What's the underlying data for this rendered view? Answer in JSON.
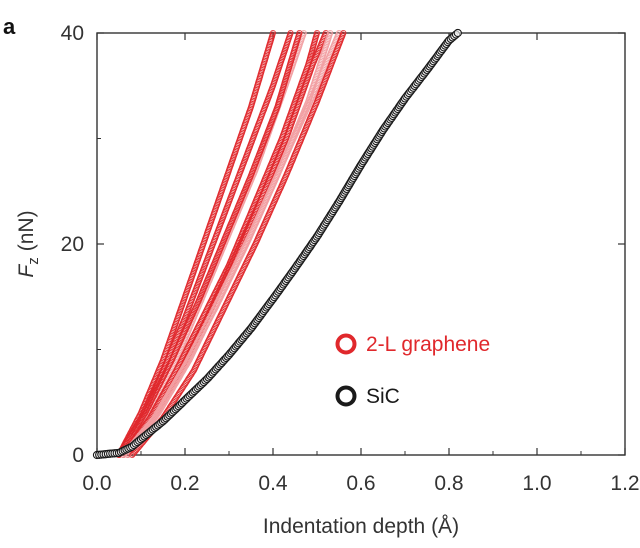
{
  "panel_label": "a",
  "colors": {
    "graphene": "#e0282c",
    "graphene_light": "#f2a0a3",
    "sic": "#1a1a1a",
    "axis": "#333333"
  },
  "chart_data": {
    "type": "scatter",
    "xlabel": "Indentation depth (Å)",
    "ylabel": {
      "symbol": "F",
      "subscript": "z",
      "unit": "(nN)"
    },
    "xlim": [
      0.0,
      1.2
    ],
    "ylim": [
      0,
      40
    ],
    "xticks": [
      "0.0",
      "0.2",
      "0.4",
      "0.6",
      "0.8",
      "1.0",
      "1.2"
    ],
    "yticks": [
      "0",
      "20",
      "40"
    ],
    "legend": {
      "placement": "lower-right",
      "entries": [
        {
          "label": "2-L graphene",
          "color": "#e0282c"
        },
        {
          "label": "SiC",
          "color": "#1a1a1a"
        }
      ]
    },
    "series": [
      {
        "name": "2-L graphene",
        "marker": "circle",
        "curves": [
          {
            "x": [
              0.05,
              0.1,
              0.15,
              0.2,
              0.25,
              0.3,
              0.35,
              0.4
            ],
            "y": [
              0,
              4,
              9,
              15,
              21,
              27,
              33,
              40
            ]
          },
          {
            "x": [
              0.05,
              0.1,
              0.15,
              0.2,
              0.25,
              0.3,
              0.35,
              0.4,
              0.44
            ],
            "y": [
              0,
              3.5,
              8,
              13,
              18.5,
              24,
              29.5,
              35,
              40
            ]
          },
          {
            "x": [
              0.06,
              0.12,
              0.18,
              0.24,
              0.3,
              0.36,
              0.42,
              0.47
            ],
            "y": [
              0,
              4,
              9,
              15,
              21,
              27,
              34,
              40
            ]
          },
          {
            "x": [
              0.06,
              0.12,
              0.18,
              0.24,
              0.3,
              0.36,
              0.42,
              0.48,
              0.5
            ],
            "y": [
              0,
              3.5,
              8,
              13,
              18,
              24,
              30,
              37,
              40
            ]
          },
          {
            "x": [
              0.07,
              0.13,
              0.19,
              0.25,
              0.31,
              0.37,
              0.43,
              0.49,
              0.52
            ],
            "y": [
              0,
              3.5,
              8,
              13,
              18.5,
              24,
              30,
              37,
              40
            ]
          },
          {
            "x": [
              0.07,
              0.14,
              0.21,
              0.28,
              0.35,
              0.42,
              0.49,
              0.55
            ],
            "y": [
              0,
              4,
              9,
              15,
              21,
              27.5,
              34,
              40
            ]
          },
          {
            "x": [
              0.08,
              0.15,
              0.22,
              0.29,
              0.36,
              0.43,
              0.5,
              0.56
            ],
            "y": [
              0,
              3.5,
              8,
              14,
              20,
              26.5,
              33.5,
              40
            ]
          },
          {
            "x": [
              0.05,
              0.11,
              0.17,
              0.23,
              0.29,
              0.35,
              0.41,
              0.46
            ],
            "y": [
              0,
              4,
              9,
              14.5,
              20.5,
              26.5,
              33,
              40
            ]
          },
          {
            "x": [
              0.06,
              0.13,
              0.2,
              0.27,
              0.34,
              0.41,
              0.48,
              0.53
            ],
            "y": [
              0,
              3.5,
              8.5,
              14,
              20,
              26.5,
              33.5,
              40
            ]
          }
        ]
      },
      {
        "name": "SiC",
        "marker": "circle",
        "x": [
          0.0,
          0.05,
          0.08,
          0.1,
          0.15,
          0.2,
          0.25,
          0.3,
          0.35,
          0.4,
          0.45,
          0.5,
          0.55,
          0.6,
          0.65,
          0.7,
          0.75,
          0.8,
          0.82
        ],
        "y": [
          0,
          0.2,
          0.8,
          1.5,
          3.2,
          5.2,
          7.2,
          9.5,
          12,
          14.8,
          17.7,
          20.7,
          24,
          27.5,
          30.8,
          33.8,
          36.5,
          39.3,
          40
        ]
      }
    ]
  }
}
